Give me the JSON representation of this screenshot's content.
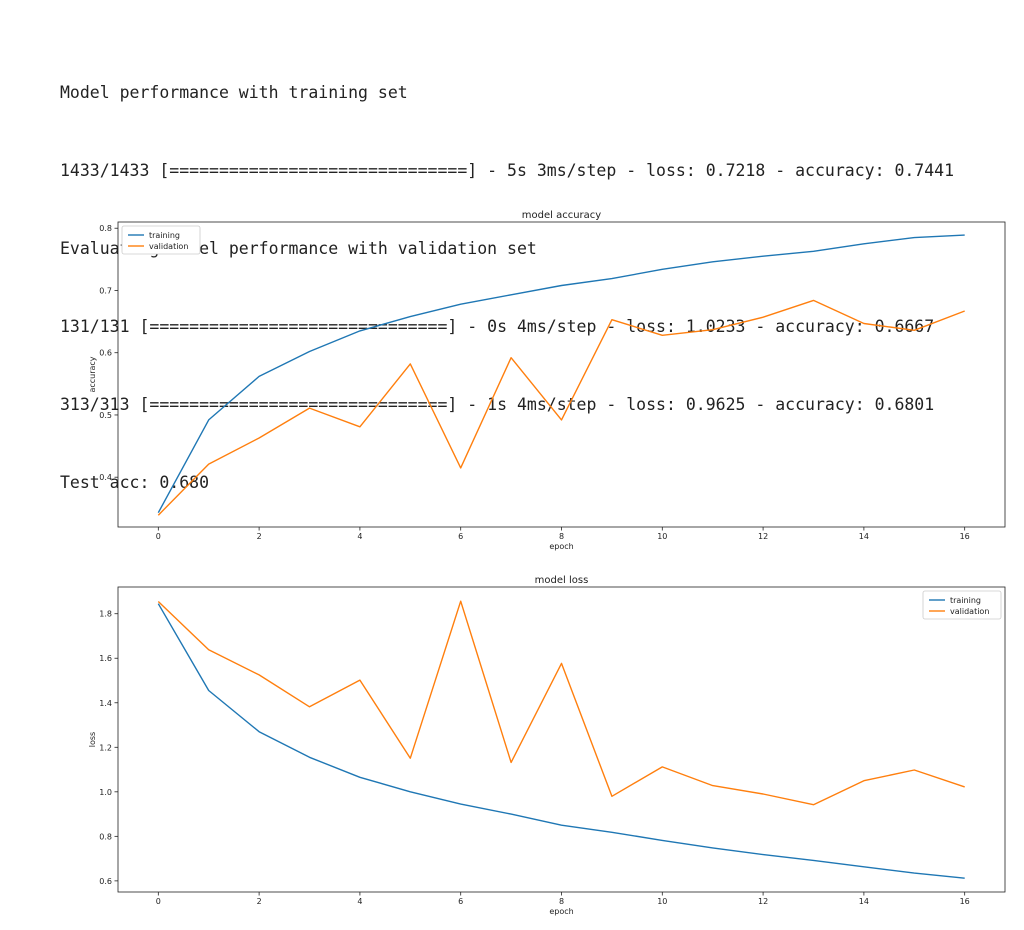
{
  "console": {
    "lines": [
      "Model performance with training set",
      "1433/1433 [==============================] - 5s 3ms/step - loss: 0.7218 - accuracy: 0.7441",
      "Evaluating model performance with validation set",
      "131/131 [==============================] - 0s 4ms/step - loss: 1.0233 - accuracy: 0.6667",
      "313/313 [==============================] - 1s 4ms/step - loss: 0.9625 - accuracy: 0.6801",
      "Test acc: 0.680"
    ]
  },
  "chart_data": [
    {
      "type": "line",
      "title": "model accuracy",
      "xlabel": "epoch",
      "ylabel": "accuracy",
      "x": [
        0,
        1,
        2,
        3,
        4,
        5,
        6,
        7,
        8,
        9,
        10,
        11,
        12,
        13,
        14,
        15,
        16
      ],
      "xlim": [
        -0.8,
        16.8
      ],
      "ylim": [
        0.32,
        0.81
      ],
      "xticks": [
        0,
        2,
        4,
        6,
        8,
        10,
        12,
        14,
        16
      ],
      "yticks": [
        0.4,
        0.5,
        0.6,
        0.7,
        0.8
      ],
      "ytick_labels": [
        "0.4",
        "0.5",
        "0.6",
        "0.7",
        "0.8"
      ],
      "legend": "top-left",
      "grid": false,
      "series": [
        {
          "name": "training",
          "color": "#1f77b4",
          "values": [
            0.343,
            0.492,
            0.562,
            0.602,
            0.635,
            0.658,
            0.678,
            0.693,
            0.708,
            0.719,
            0.734,
            0.746,
            0.755,
            0.763,
            0.775,
            0.785,
            0.789
          ]
        },
        {
          "name": "validation",
          "color": "#ff7f0e",
          "values": [
            0.339,
            0.421,
            0.463,
            0.511,
            0.481,
            0.582,
            0.415,
            0.592,
            0.492,
            0.653,
            0.628,
            0.637,
            0.657,
            0.684,
            0.647,
            0.636,
            0.667
          ]
        }
      ]
    },
    {
      "type": "line",
      "title": "model loss",
      "xlabel": "epoch",
      "ylabel": "loss",
      "x": [
        0,
        1,
        2,
        3,
        4,
        5,
        6,
        7,
        8,
        9,
        10,
        11,
        12,
        13,
        14,
        15,
        16
      ],
      "xlim": [
        -0.8,
        16.8
      ],
      "ylim": [
        0.55,
        1.92
      ],
      "xticks": [
        0,
        2,
        4,
        6,
        8,
        10,
        12,
        14,
        16
      ],
      "yticks": [
        0.6,
        0.8,
        1.0,
        1.2,
        1.4,
        1.6,
        1.8
      ],
      "ytick_labels": [
        "0.6",
        "0.8",
        "1.0",
        "1.2",
        "1.4",
        "1.6",
        "1.8"
      ],
      "legend": "top-right",
      "grid": false,
      "series": [
        {
          "name": "training",
          "color": "#1f77b4",
          "values": [
            1.845,
            1.455,
            1.27,
            1.155,
            1.065,
            1.0,
            0.945,
            0.9,
            0.85,
            0.818,
            0.782,
            0.748,
            0.718,
            0.692,
            0.663,
            0.635,
            0.612
          ]
        },
        {
          "name": "validation",
          "color": "#ff7f0e",
          "values": [
            1.855,
            1.638,
            1.525,
            1.382,
            1.502,
            1.151,
            1.856,
            1.132,
            1.577,
            0.98,
            1.112,
            1.028,
            0.99,
            0.942,
            1.05,
            1.098,
            1.022
          ]
        }
      ]
    }
  ]
}
